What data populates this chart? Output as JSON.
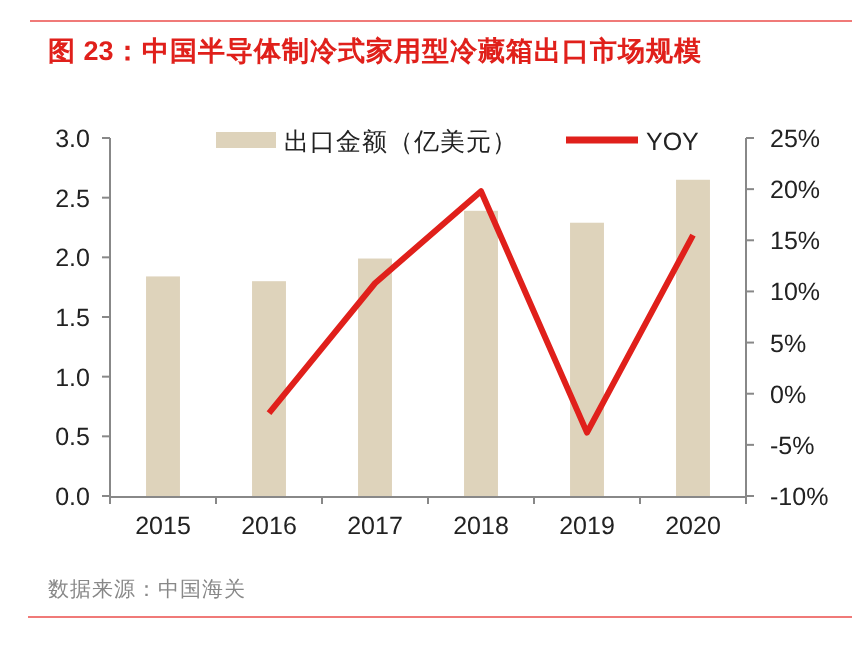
{
  "chart_data": {
    "type": "bar",
    "title": "图 23：中国半导体制冷式家用型冷藏箱出口市场规模",
    "categories": [
      "2015",
      "2016",
      "2017",
      "2018",
      "2019",
      "2020"
    ],
    "series": [
      {
        "name": "出口金额（亿美元）",
        "color": "#ded3bb",
        "values": [
          1.84,
          1.8,
          1.99,
          2.39,
          2.29,
          2.65
        ]
      },
      {
        "name": "YOY",
        "type": "line",
        "axis": "y2",
        "color": "#e0201b",
        "values": [
          null,
          -1.9,
          10.8,
          19.8,
          -3.8,
          15.5
        ]
      }
    ],
    "ylim": [
      0,
      3
    ],
    "yticks": [
      {
        "value": 0,
        "label": "0.0"
      },
      0.5,
      {
        "value": 1,
        "label": "1.0"
      },
      1.5,
      {
        "value": 2,
        "label": "2.0"
      },
      2.5,
      {
        "value": 3,
        "label": "3.0"
      }
    ],
    "y2lim": [
      -10,
      25
    ],
    "y2ticks": [
      {
        "value": -10,
        "label": "-10%"
      },
      {
        "value": -5,
        "label": "-5%"
      },
      {
        "value": 0,
        "label": "0%"
      },
      {
        "value": 5,
        "label": "5%"
      },
      {
        "value": 10,
        "label": "10%"
      },
      {
        "value": 15,
        "label": "15%"
      },
      {
        "value": 20,
        "label": "20%"
      },
      {
        "value": 25,
        "label": "25%"
      }
    ],
    "legend": "top",
    "annotations": [
      "数据来源：中国海关"
    ]
  }
}
